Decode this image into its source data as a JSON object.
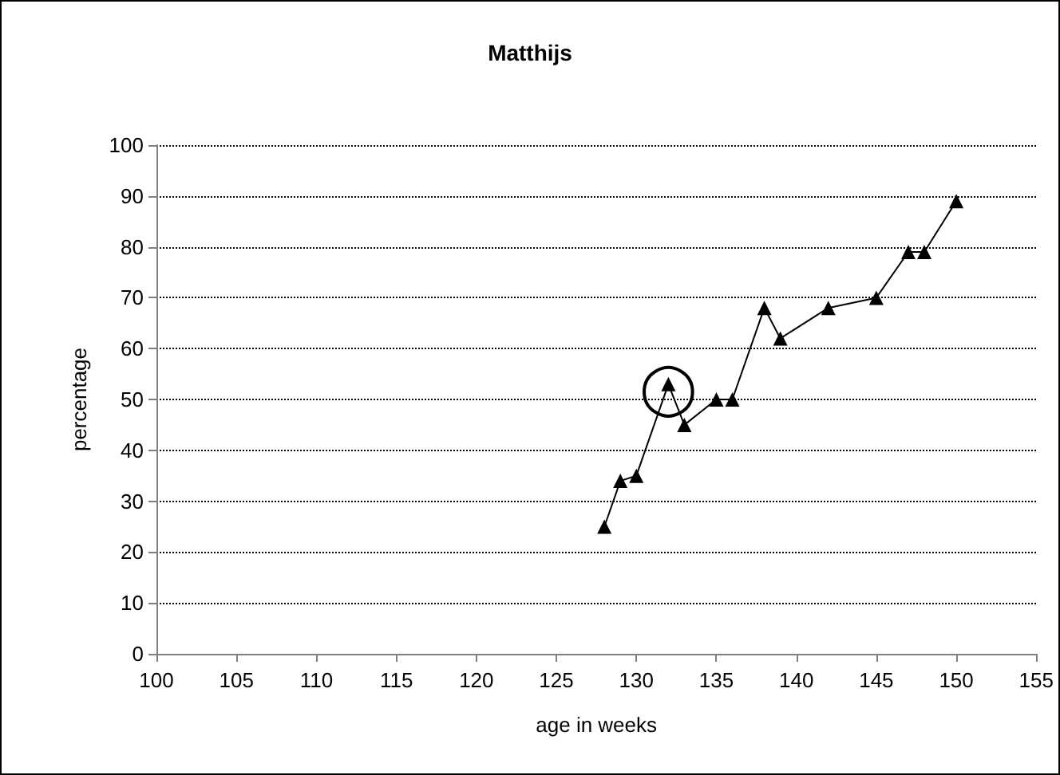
{
  "chart_data": {
    "type": "line",
    "title": "Matthijs",
    "xlabel": "age in weeks",
    "ylabel": "percentage",
    "x": [
      128,
      129,
      130,
      132,
      133,
      135,
      136,
      138,
      139,
      142,
      145,
      147,
      148,
      150
    ],
    "series": [
      {
        "color": "#000000",
        "values": [
          25,
          34,
          35,
          53,
          45,
          50,
          50,
          68,
          62,
          68,
          70,
          79,
          79,
          89
        ]
      }
    ],
    "xlim": [
      100,
      155
    ],
    "xticks": [
      100,
      105,
      110,
      115,
      120,
      125,
      130,
      135,
      140,
      145,
      150,
      155
    ],
    "ylim": [
      0,
      100
    ],
    "yticks": [
      0,
      10,
      20,
      30,
      40,
      50,
      60,
      70,
      80,
      90,
      100
    ],
    "grid": "y",
    "marker": "triangle",
    "line_style": "solid",
    "annotations": [
      {
        "text": "◯",
        "x": 132,
        "y": 53
      }
    ]
  }
}
